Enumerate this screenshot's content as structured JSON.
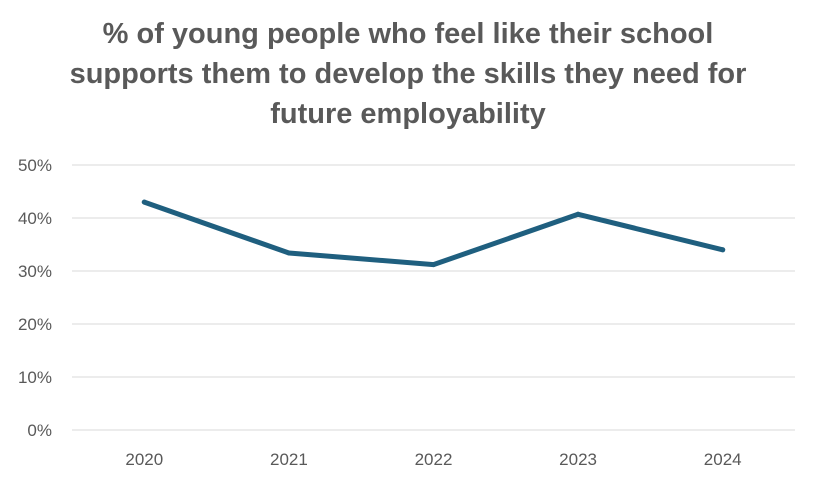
{
  "chart_data": {
    "type": "line",
    "title": {
      "regular": "% of young people who feel like their ",
      "bold": "school supports them to develop the skills they need for future employability"
    },
    "xlabel": "",
    "ylabel": "",
    "categories": [
      "2020",
      "2021",
      "2022",
      "2023",
      "2024"
    ],
    "series": [
      {
        "values": [
          43,
          33.4,
          31.2,
          40.7,
          34
        ]
      }
    ],
    "ylim": [
      0,
      50
    ],
    "yticks": [
      0,
      10,
      20,
      30,
      40,
      50
    ],
    "ytick_labels": [
      "0%",
      "10%",
      "20%",
      "30%",
      "40%",
      "50%"
    ],
    "grid": true,
    "legend": "none",
    "colors": {
      "line": "#1f5f7f",
      "grid": "#d9d9d9",
      "text": "#595959"
    }
  }
}
